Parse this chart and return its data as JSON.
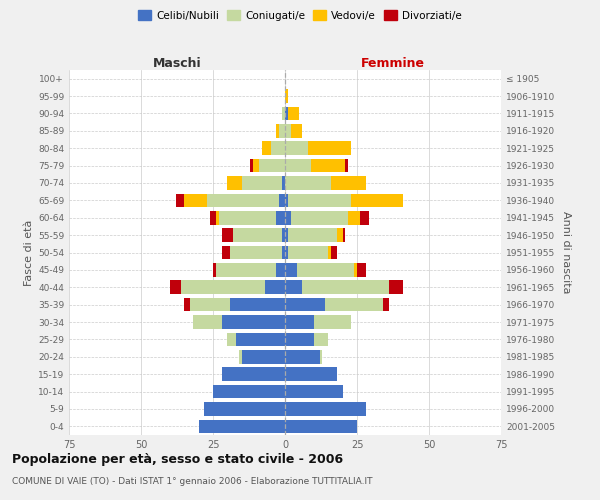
{
  "age_groups": [
    "0-4",
    "5-9",
    "10-14",
    "15-19",
    "20-24",
    "25-29",
    "30-34",
    "35-39",
    "40-44",
    "45-49",
    "50-54",
    "55-59",
    "60-64",
    "65-69",
    "70-74",
    "75-79",
    "80-84",
    "85-89",
    "90-94",
    "95-99",
    "100+"
  ],
  "birth_years": [
    "2001-2005",
    "1996-2000",
    "1991-1995",
    "1986-1990",
    "1981-1985",
    "1976-1980",
    "1971-1975",
    "1966-1970",
    "1961-1965",
    "1956-1960",
    "1951-1955",
    "1946-1950",
    "1941-1945",
    "1936-1940",
    "1931-1935",
    "1926-1930",
    "1921-1925",
    "1916-1920",
    "1911-1915",
    "1906-1910",
    "≤ 1905"
  ],
  "male": {
    "celibi": [
      30,
      28,
      25,
      22,
      15,
      17,
      22,
      19,
      7,
      3,
      1,
      1,
      3,
      2,
      1,
      0,
      0,
      0,
      0,
      0,
      0
    ],
    "coniugati": [
      0,
      0,
      0,
      0,
      1,
      3,
      10,
      14,
      29,
      21,
      18,
      17,
      20,
      25,
      14,
      9,
      5,
      2,
      1,
      0,
      0
    ],
    "vedovi": [
      0,
      0,
      0,
      0,
      0,
      0,
      0,
      0,
      0,
      0,
      0,
      0,
      1,
      8,
      5,
      2,
      3,
      1,
      0,
      0,
      0
    ],
    "divorziati": [
      0,
      0,
      0,
      0,
      0,
      0,
      0,
      2,
      4,
      1,
      3,
      4,
      2,
      3,
      0,
      1,
      0,
      0,
      0,
      0,
      0
    ]
  },
  "female": {
    "nubili": [
      25,
      28,
      20,
      18,
      12,
      10,
      10,
      14,
      6,
      4,
      1,
      1,
      2,
      1,
      0,
      0,
      0,
      0,
      1,
      0,
      0
    ],
    "coniugate": [
      0,
      0,
      0,
      0,
      1,
      5,
      13,
      20,
      30,
      20,
      14,
      17,
      20,
      22,
      16,
      9,
      8,
      2,
      0,
      0,
      0
    ],
    "vedove": [
      0,
      0,
      0,
      0,
      0,
      0,
      0,
      0,
      0,
      1,
      1,
      2,
      4,
      18,
      12,
      12,
      15,
      4,
      4,
      1,
      0
    ],
    "divorziate": [
      0,
      0,
      0,
      0,
      0,
      0,
      0,
      2,
      5,
      3,
      2,
      1,
      3,
      0,
      0,
      1,
      0,
      0,
      0,
      0,
      0
    ]
  },
  "colors": {
    "celibi": "#4472c4",
    "coniugati": "#c5d9a0",
    "vedovi": "#ffc000",
    "divorziati": "#c0000b"
  },
  "title": "Popolazione per età, sesso e stato civile - 2006",
  "subtitle": "COMUNE DI VAIE (TO) - Dati ISTAT 1° gennaio 2006 - Elaborazione TUTTITALIA.IT",
  "xlabel_left": "Maschi",
  "xlabel_right": "Femmine",
  "ylabel_left": "Fasce di età",
  "ylabel_right": "Anni di nascita",
  "xlim": 75,
  "bg_color": "#f0f0f0",
  "plot_bg": "#ffffff",
  "grid_color": "#cccccc"
}
